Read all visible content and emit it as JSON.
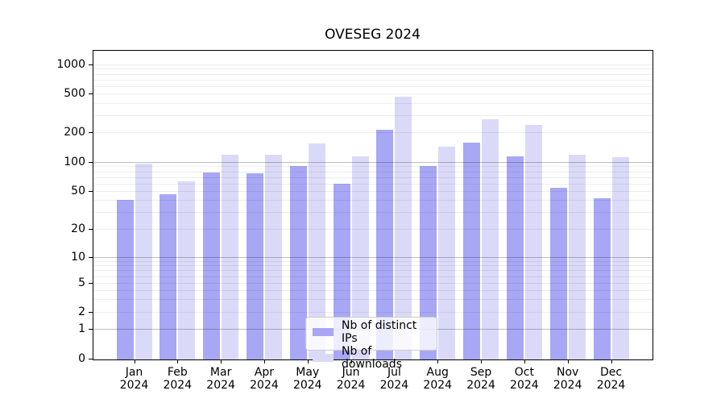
{
  "chart_data": {
    "type": "bar",
    "title": "OVESEG 2024",
    "categories": [
      "Jan",
      "Feb",
      "Mar",
      "Apr",
      "May",
      "Jun",
      "Jul",
      "Aug",
      "Sep",
      "Oct",
      "Nov",
      "Dec"
    ],
    "x_year_label": "2024",
    "series": [
      {
        "name": "Nb of distinct IPs",
        "color": "#a7a7f5",
        "values": [
          40,
          46,
          78,
          77,
          90,
          59,
          212,
          90,
          158,
          115,
          54,
          42
        ]
      },
      {
        "name": "Nb of downloads",
        "color": "#dadaf8",
        "values": [
          97,
          63,
          118,
          118,
          155,
          113,
          460,
          143,
          270,
          238,
          119,
          112
        ]
      }
    ],
    "y_ticks": [
      0,
      1,
      2,
      5,
      10,
      20,
      50,
      100,
      200,
      500,
      1000
    ],
    "y_scale": "symlog",
    "ylim": [
      0,
      1000
    ],
    "grid": "both",
    "legend_position": "lower center"
  }
}
